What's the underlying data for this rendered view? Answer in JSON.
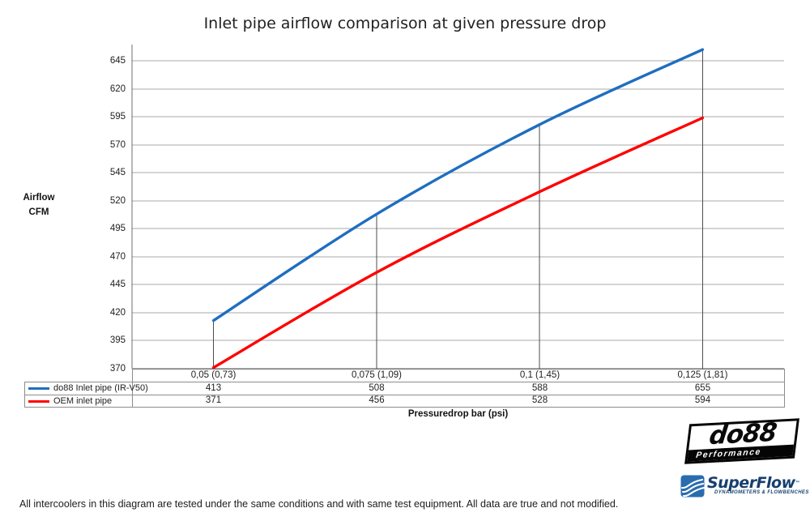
{
  "title": "Inlet pipe airflow comparison at given pressure drop",
  "y_axis_label": [
    "Airflow",
    "CFM"
  ],
  "x_axis_label": "Pressuredrop bar (psi)",
  "chart_data": {
    "type": "line",
    "title": "Inlet pipe airflow comparison at given pressure drop",
    "xlabel": "Pressuredrop bar (psi)",
    "ylabel": "Airflow CFM",
    "categories": [
      "0,05 (0,73)",
      "0,075 (1,09)",
      "0,1 (1,45)",
      "0,125 (1,81)"
    ],
    "series": [
      {
        "name": "do88 Inlet pipe (IR-V50)",
        "color": "#1e6ec0",
        "values": [
          413,
          508,
          588,
          655
        ]
      },
      {
        "name": "OEM inlet pipe",
        "color": "#fe0000",
        "values": [
          371,
          456,
          528,
          594
        ]
      }
    ],
    "y_ticks": [
      370,
      395,
      420,
      445,
      470,
      495,
      520,
      545,
      570,
      595,
      620,
      645
    ],
    "ylim": [
      370,
      659
    ],
    "grid": true,
    "smooth_lines": true,
    "legend_position": "data-table-left",
    "drop_lines_to_axis": true
  },
  "footer_note": "All intercoolers in this diagram are tested under the same conditions and with same test equipment. All data are true and not modified.",
  "logos": {
    "do88_text": "do88",
    "do88_sub": "Performance",
    "superflow_text": "SuperFlow",
    "superflow_tm": "™",
    "superflow_tagline": "DYNAMOMETERS & FLOWBENCHES"
  },
  "colors": {
    "series1": "#1e6ec0",
    "series2": "#fe0000",
    "gridline": "#a8a8a8",
    "axis": "#6f6f6f",
    "drop_line": "#4d4d4d",
    "table_border": "#8c8c8c",
    "superflow_navy": "#16406e"
  }
}
